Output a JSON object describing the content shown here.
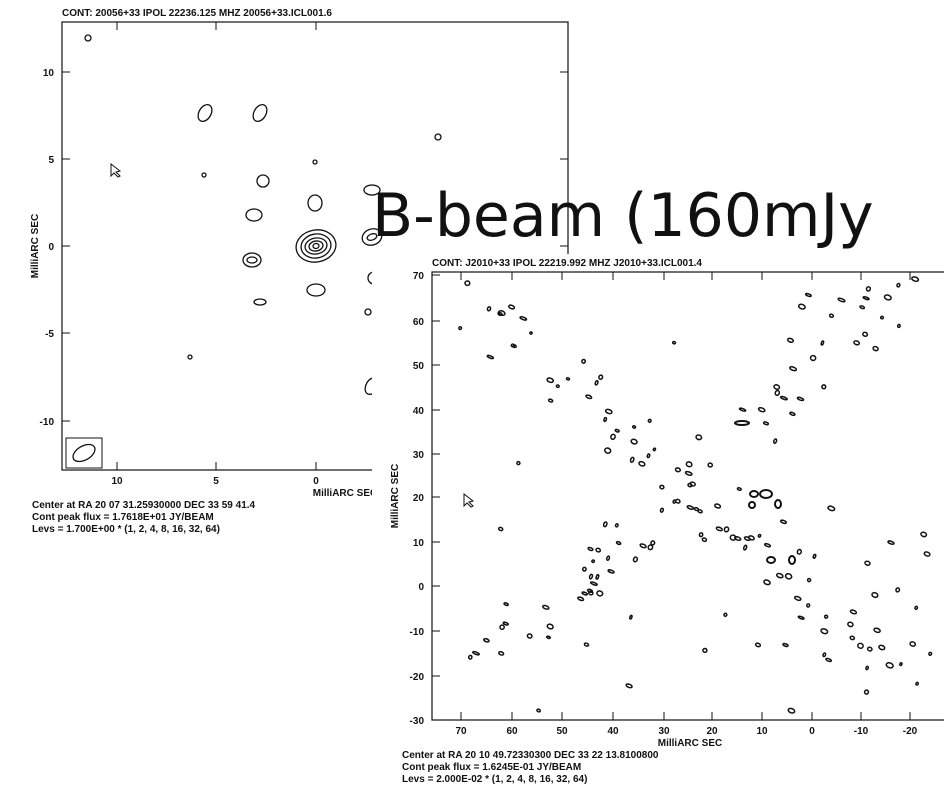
{
  "overlay_title": "B-beam (160mJy",
  "plot_1": {
    "title": "CONT: 20056+33  IPOL  22236.125 MHZ  20056+33.ICL001.6",
    "y_axis_label": "MilliARC SEC",
    "x_axis_label": "MilliARC SEC",
    "y_ticks": [
      10,
      5,
      0,
      -5,
      -10
    ],
    "x_ticks": [
      10,
      5,
      0
    ],
    "footer": [
      "Center at RA 20 07 31.25930000  DEC 33 59 41.4",
      "Cont peak flux =  1.7618E+01 JY/BEAM",
      "Levs = 1.700E+00 * (1, 2, 4, 8, 16, 32, 64)"
    ]
  },
  "plot_2": {
    "title": "CONT: J2010+33  IPOL  22219.992 MHZ  J2010+33.ICL001.4",
    "y_axis_label": "MilliARC SEC",
    "x_axis_label": "MilliARC SEC",
    "y_ticks": [
      70,
      60,
      50,
      40,
      30,
      20,
      10,
      0,
      -10,
      -20,
      -30
    ],
    "x_ticks": [
      70,
      60,
      50,
      40,
      30,
      20,
      10,
      0,
      -10,
      -20
    ],
    "footer": [
      "Center at RA 20 10 49.72330300  DEC 33 22 13.8100800",
      "Cont peak flux =  1.6245E-01 JY/BEAM",
      "Levs = 2.000E-02 * (1, 2, 4, 8, 16, 32, 64)"
    ]
  }
}
